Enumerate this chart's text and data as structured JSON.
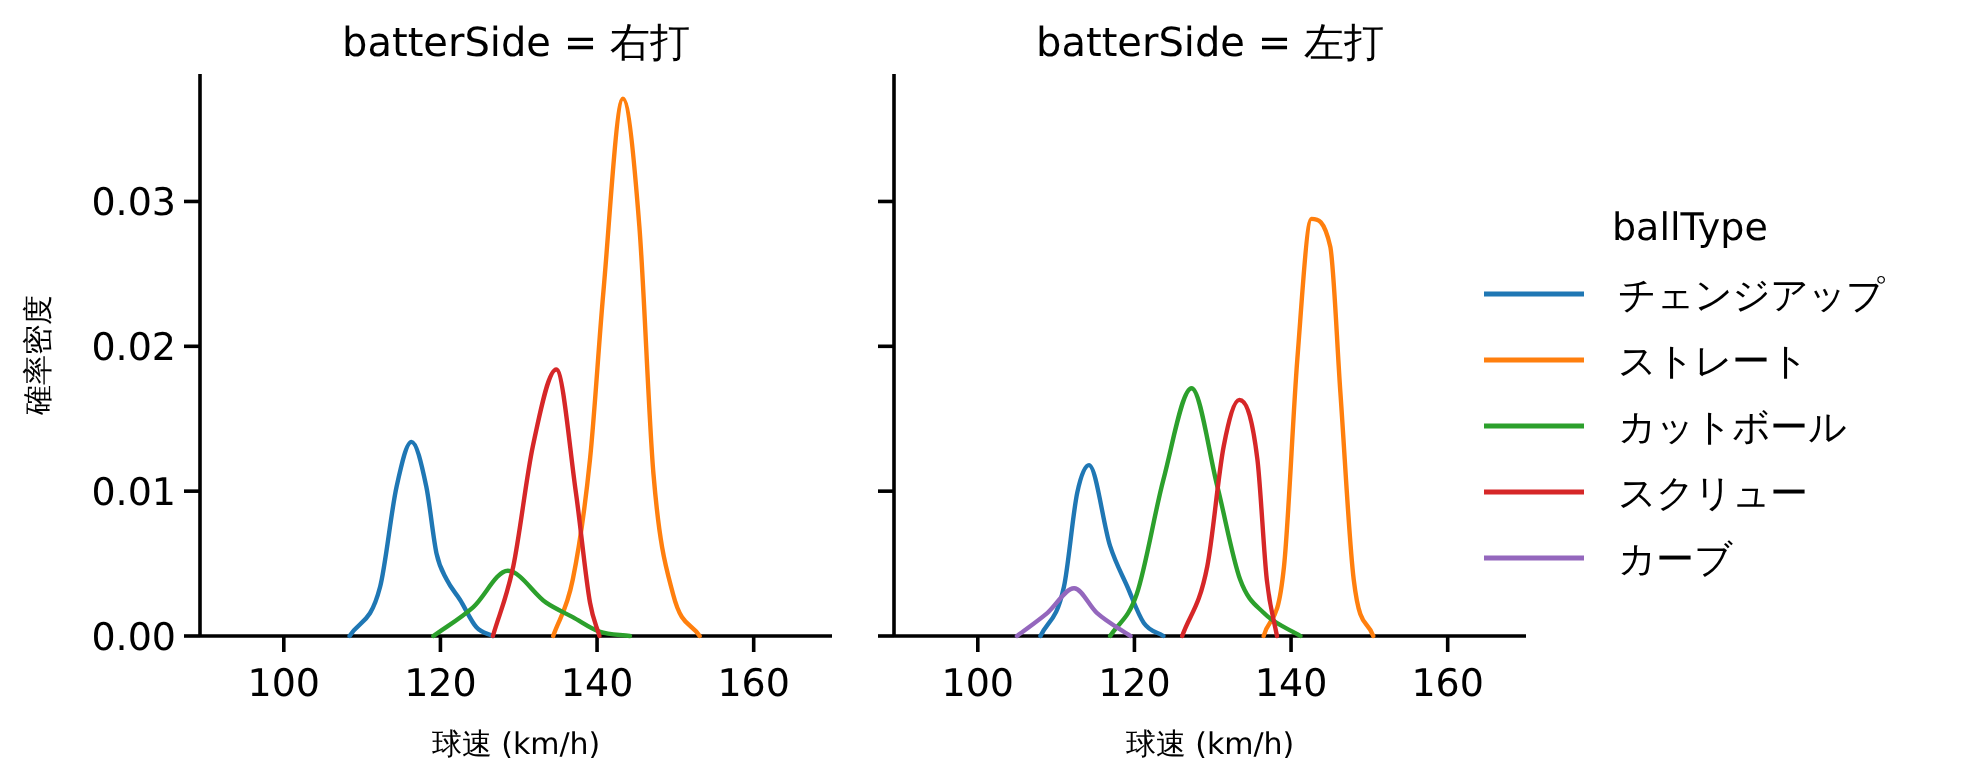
{
  "chart_data": [
    {
      "type": "line",
      "title": "batterSide = 右打",
      "xlabel": "球速 (km/h)",
      "ylabel": "確率密度",
      "xlim": [
        89.3,
        170
      ],
      "xticks": [
        100,
        120,
        140,
        160
      ],
      "ylim": [
        0,
        0.0388
      ],
      "yticks": [
        {
          "value": 0,
          "label": "0.00"
        },
        {
          "value": 0.01,
          "label": "0.01"
        },
        {
          "value": 0.02,
          "label": "0.02"
        },
        {
          "value": 0.03,
          "label": "0.03"
        }
      ],
      "series": [
        {
          "color": "#1f77b4",
          "x": [
            108.4,
            112.3,
            114.4,
            116.3,
            118.2,
            119.5,
            120.8,
            122.5,
            124.6,
            126.7
          ],
          "values": [
            0,
            0.0034,
            0.0103,
            0.0134,
            0.0103,
            0.0057,
            0.0039,
            0.0025,
            0.0006,
            0
          ]
        },
        {
          "color": "#ff7f0e",
          "x": [
            134.4,
            136.9,
            139.1,
            140.8,
            143.3,
            145.4,
            147.2,
            149.7,
            153.1
          ],
          "values": [
            0,
            0.0039,
            0.0122,
            0.0237,
            0.0371,
            0.0283,
            0.0112,
            0.0029,
            0
          ]
        },
        {
          "color": "#2ca02c",
          "x": [
            119.1,
            124.2,
            128.6,
            133.5,
            136.9,
            140.3,
            144.2
          ],
          "values": [
            0,
            0.002,
            0.0045,
            0.0023,
            0.0013,
            0.0003,
            0
          ]
        },
        {
          "color": "#d62728",
          "x": [
            126.7,
            129.3,
            131.8,
            134.8,
            137.3,
            139.1,
            140.3
          ],
          "values": [
            0,
            0.0048,
            0.0131,
            0.0184,
            0.0099,
            0.0023,
            0
          ]
        }
      ]
    },
    {
      "type": "line",
      "title": "batterSide = 左打",
      "xlabel": "球速 (km/h)",
      "xlim": [
        89.3,
        170
      ],
      "xticks": [
        100,
        120,
        140,
        160
      ],
      "ylim": [
        0,
        0.0388
      ],
      "yticks": [
        {
          "value": 0,
          "label": null
        },
        {
          "value": 0.01,
          "label": null
        },
        {
          "value": 0.02,
          "label": null
        },
        {
          "value": 0.03,
          "label": null
        }
      ],
      "tick_labels": "x",
      "legend": "right",
      "legend_title": "ballType",
      "series": [
        {
          "name": "チェンジアップ",
          "color": "#1f77b4",
          "x": [
            108.0,
            111.0,
            112.7,
            114.2,
            116.9,
            119.1,
            121.2,
            123.7
          ],
          "values": [
            0,
            0.0034,
            0.0099,
            0.0118,
            0.0062,
            0.0034,
            0.0009,
            0
          ]
        },
        {
          "name": "ストレート",
          "color": "#ff7f0e",
          "x": [
            136.5,
            139.1,
            140.8,
            142.6,
            145.0,
            146.3,
            148.0,
            150.5
          ],
          "values": [
            0,
            0.0048,
            0.0191,
            0.0288,
            0.0269,
            0.0168,
            0.0039,
            0
          ]
        },
        {
          "name": "カットボール",
          "color": "#2ca02c",
          "x": [
            116.9,
            120.3,
            123.7,
            127.3,
            130.6,
            133.5,
            136.5,
            141.2
          ],
          "values": [
            0,
            0.0029,
            0.0108,
            0.0171,
            0.0103,
            0.0039,
            0.0016,
            0
          ]
        },
        {
          "name": "スクリュー",
          "color": "#d62728",
          "x": [
            126.1,
            129.3,
            131.4,
            133.4,
            135.7,
            136.9,
            138.2
          ],
          "values": [
            0,
            0.0048,
            0.0131,
            0.0163,
            0.0122,
            0.0039,
            0
          ]
        },
        {
          "name": "カーブ",
          "color": "#9467bd",
          "x": [
            105.0,
            108.9,
            112.3,
            115.2,
            119.5
          ],
          "values": [
            0,
            0.0016,
            0.0033,
            0.0016,
            0
          ]
        }
      ]
    }
  ]
}
